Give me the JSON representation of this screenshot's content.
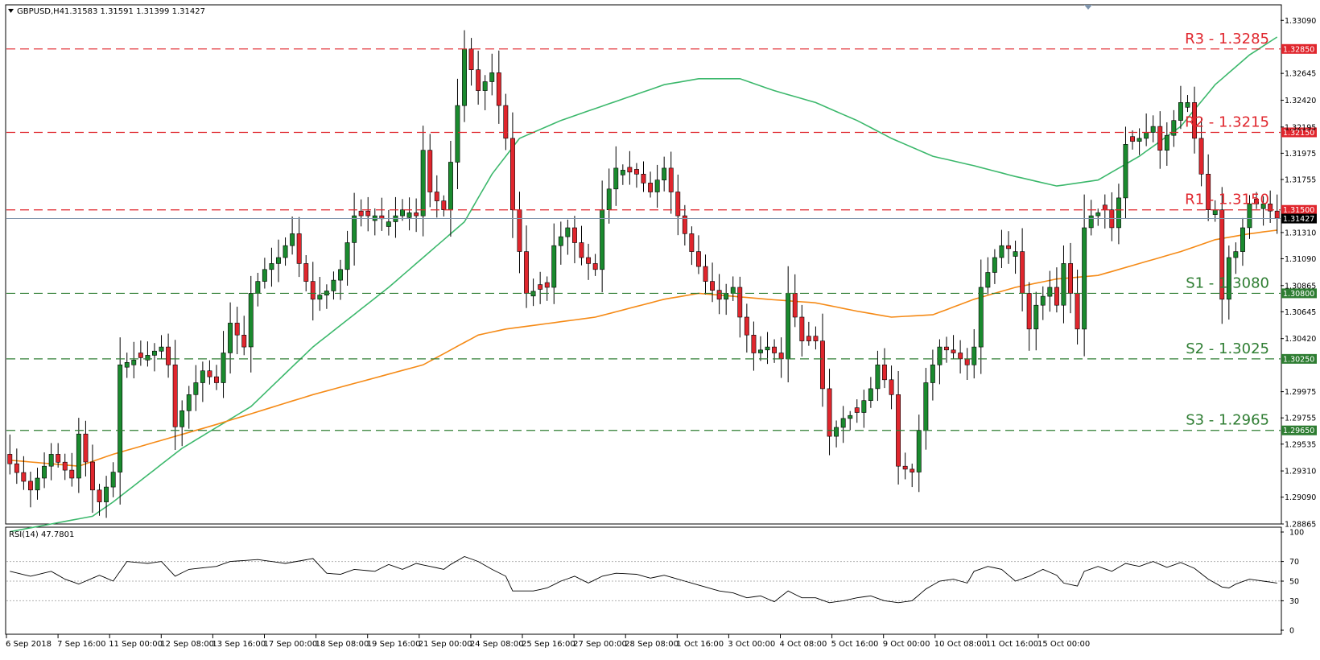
{
  "header": {
    "symbol": "GBPUSD,H4",
    "ohlc": "1.31583 1.31591 1.31399 1.31427",
    "rsi_label": "RSI(14) 47.7801"
  },
  "colors": {
    "bull": "#1a8a2e",
    "bear": "#e0262d",
    "resistance": "#e0262d",
    "support": "#2e7d32",
    "ma_green": "#3cb86c",
    "ma_orange": "#f58a16",
    "price_line": "#7f95ad"
  },
  "chart_data": [
    {
      "type": "candlestick",
      "title": "GBPUSD,H4",
      "ylim": [
        1.28865,
        1.3322
      ],
      "y_ticks": [
        "1.33090",
        "1.32645",
        "1.32420",
        "1.32195",
        "1.31975",
        "1.31755",
        "1.31310",
        "1.31090",
        "1.30865",
        "1.30645",
        "1.30420",
        "1.29975",
        "1.29755",
        "1.29535",
        "1.29310",
        "1.29090",
        "1.28865"
      ],
      "x_ticks": [
        "6 Sep 2018",
        "7 Sep 16:00",
        "11 Sep 00:00",
        "12 Sep 08:00",
        "13 Sep 16:00",
        "17 Sep 00:00",
        "18 Sep 08:00",
        "19 Sep 16:00",
        "21 Sep 00:00",
        "24 Sep 08:00",
        "25 Sep 16:00",
        "27 Sep 00:00",
        "28 Sep 08:00",
        "1 Oct 16:00",
        "3 Oct 00:00",
        "4 Oct 08:00",
        "5 Oct 16:00",
        "9 Oct 00:00",
        "10 Oct 08:00",
        "11 Oct 16:00",
        "15 Oct 00:00"
      ],
      "levels": [
        {
          "label": "R3 - 1.3285",
          "value": 1.3285,
          "tag": "1.32850",
          "kind": "resistance"
        },
        {
          "label": "R2 - 1.3215",
          "value": 1.3215,
          "tag": "1.32150",
          "kind": "resistance"
        },
        {
          "label": "R1 - 1.3150",
          "value": 1.315,
          "tag": "1.31500",
          "kind": "resistance"
        },
        {
          "label": "S1 - 1.3080",
          "value": 1.308,
          "tag": "1.30800",
          "kind": "support"
        },
        {
          "label": "S2 - 1.3025",
          "value": 1.3025,
          "tag": "1.30250",
          "kind": "support"
        },
        {
          "label": "S3 - 1.2965",
          "value": 1.2965,
          "tag": "1.29650",
          "kind": "support"
        }
      ],
      "current_price": {
        "value": 1.31427,
        "tag": "1.31427"
      },
      "close_path": [
        [
          0,
          1.2937
        ],
        [
          3,
          1.2915
        ],
        [
          6,
          1.2945
        ],
        [
          9,
          1.2925
        ],
        [
          10,
          1.2962
        ],
        [
          12,
          1.2915
        ],
        [
          13,
          1.2905
        ],
        [
          15,
          1.293
        ],
        [
          16,
          1.302
        ],
        [
          20,
          1.3028
        ],
        [
          22,
          1.3035
        ],
        [
          23,
          1.302
        ],
        [
          24,
          1.2968
        ],
        [
          26,
          1.2995
        ],
        [
          28,
          1.3015
        ],
        [
          30,
          1.3005
        ],
        [
          32,
          1.3055
        ],
        [
          34,
          1.3035
        ],
        [
          35,
          1.308
        ],
        [
          37,
          1.31
        ],
        [
          39,
          1.311
        ],
        [
          41,
          1.313
        ],
        [
          42,
          1.3105
        ],
        [
          44,
          1.3075
        ],
        [
          46,
          1.3082
        ],
        [
          48,
          1.31
        ],
        [
          50,
          1.3145
        ],
        [
          53,
          1.3145
        ],
        [
          55,
          1.314
        ],
        [
          57,
          1.315
        ],
        [
          59,
          1.3145
        ],
        [
          60,
          1.32
        ],
        [
          61,
          1.3165
        ],
        [
          63,
          1.315
        ],
        [
          64,
          1.319
        ],
        [
          66,
          1.3285
        ],
        [
          68,
          1.325
        ],
        [
          70,
          1.3265
        ],
        [
          72,
          1.321
        ],
        [
          73,
          1.315
        ],
        [
          75,
          1.308
        ],
        [
          78,
          1.3085
        ],
        [
          79,
          1.312
        ],
        [
          81,
          1.3135
        ],
        [
          83,
          1.311
        ],
        [
          85,
          1.31
        ],
        [
          86,
          1.315
        ],
        [
          88,
          1.3185
        ],
        [
          91,
          1.318
        ],
        [
          93,
          1.3165
        ],
        [
          95,
          1.3185
        ],
        [
          97,
          1.3145
        ],
        [
          99,
          1.3115
        ],
        [
          101,
          1.309
        ],
        [
          103,
          1.3075
        ],
        [
          105,
          1.3085
        ],
        [
          106,
          1.306
        ],
        [
          108,
          1.303
        ],
        [
          110,
          1.3035
        ],
        [
          112,
          1.3025
        ],
        [
          113,
          1.308
        ],
        [
          115,
          1.304
        ],
        [
          117,
          1.304
        ],
        [
          119,
          1.296
        ],
        [
          121,
          1.2975
        ],
        [
          123,
          1.298
        ],
        [
          125,
          1.3
        ],
        [
          126,
          1.302
        ],
        [
          128,
          1.2995
        ],
        [
          129,
          1.2935
        ],
        [
          131,
          1.293
        ],
        [
          132,
          1.2965
        ],
        [
          133,
          1.3005
        ],
        [
          135,
          1.3035
        ],
        [
          137,
          1.303
        ],
        [
          139,
          1.302
        ],
        [
          140,
          1.3035
        ],
        [
          141,
          1.3085
        ],
        [
          143,
          1.311
        ],
        [
          144,
          1.312
        ],
        [
          146,
          1.3115
        ],
        [
          147,
          1.308
        ],
        [
          148,
          1.305
        ],
        [
          149,
          1.307
        ],
        [
          151,
          1.3085
        ],
        [
          152,
          1.307
        ],
        [
          153,
          1.3105
        ],
        [
          154,
          1.308
        ],
        [
          155,
          1.305
        ],
        [
          156,
          1.3135
        ],
        [
          157,
          1.3145
        ],
        [
          159,
          1.315
        ],
        [
          160,
          1.3135
        ],
        [
          161,
          1.316
        ],
        [
          162,
          1.3205
        ],
        [
          164,
          1.321
        ],
        [
          166,
          1.322
        ],
        [
          167,
          1.32
        ],
        [
          169,
          1.3225
        ],
        [
          170,
          1.324
        ],
        [
          171,
          1.324
        ],
        [
          172,
          1.321
        ],
        [
          173,
          1.318
        ],
        [
          174,
          1.315
        ],
        [
          175,
          1.315
        ],
        [
          176,
          1.3075
        ],
        [
          177,
          1.311
        ],
        [
          178,
          1.3115
        ],
        [
          179,
          1.3135
        ],
        [
          180,
          1.3155
        ],
        [
          182,
          1.3155
        ],
        [
          184,
          1.3143
        ]
      ],
      "series": [
        {
          "name": "",
          "values": [
            [
              0,
              1.288
            ],
            [
              12,
              1.2893
            ],
            [
              15,
              1.2905
            ],
            [
              25,
              1.295
            ],
            [
              35,
              1.2985
            ],
            [
              44,
              1.3035
            ],
            [
              55,
              1.3085
            ],
            [
              66,
              1.314
            ],
            [
              70,
              1.318
            ],
            [
              74,
              1.321
            ],
            [
              80,
              1.3225
            ],
            [
              90,
              1.3245
            ],
            [
              95,
              1.3255
            ],
            [
              100,
              1.326
            ],
            [
              106,
              1.326
            ],
            [
              111,
              1.325
            ],
            [
              117,
              1.324
            ],
            [
              123,
              1.3225
            ],
            [
              128,
              1.321
            ],
            [
              134,
              1.3195
            ],
            [
              140,
              1.3187
            ],
            [
              146,
              1.3178
            ],
            [
              152,
              1.317
            ],
            [
              158,
              1.3175
            ],
            [
              164,
              1.3195
            ],
            [
              170,
              1.322
            ],
            [
              175,
              1.3255
            ],
            [
              180,
              1.328
            ],
            [
              184,
              1.3295
            ]
          ]
        },
        {
          "name": "",
          "values": [
            [
              0,
              1.294
            ],
            [
              10,
              1.2935
            ],
            [
              15,
              1.2945
            ],
            [
              30,
              1.297
            ],
            [
              44,
              1.2995
            ],
            [
              60,
              1.302
            ],
            [
              68,
              1.3045
            ],
            [
              72,
              1.305
            ],
            [
              85,
              1.306
            ],
            [
              95,
              1.3075
            ],
            [
              100,
              1.308
            ],
            [
              110,
              1.3075
            ],
            [
              117,
              1.3072
            ],
            [
              123,
              1.3065
            ],
            [
              128,
              1.306
            ],
            [
              134,
              1.3062
            ],
            [
              140,
              1.3075
            ],
            [
              146,
              1.3085
            ],
            [
              152,
              1.3092
            ],
            [
              158,
              1.3095
            ],
            [
              164,
              1.3105
            ],
            [
              170,
              1.3115
            ],
            [
              175,
              1.3125
            ],
            [
              180,
              1.313
            ],
            [
              184,
              1.3133
            ]
          ]
        }
      ]
    },
    {
      "type": "line",
      "title": "RSI(14) 47.7801",
      "ylim": [
        0,
        100
      ],
      "y_ticks": [
        "100",
        "70",
        "50",
        "30",
        "0"
      ],
      "levels": [
        70,
        50,
        30
      ],
      "values": [
        [
          0,
          60
        ],
        [
          3,
          55
        ],
        [
          6,
          60
        ],
        [
          8,
          52
        ],
        [
          10,
          47
        ],
        [
          13,
          56
        ],
        [
          15,
          50
        ],
        [
          17,
          70
        ],
        [
          20,
          68
        ],
        [
          22,
          70
        ],
        [
          24,
          55
        ],
        [
          26,
          62
        ],
        [
          30,
          65
        ],
        [
          32,
          70
        ],
        [
          36,
          72
        ],
        [
          40,
          68
        ],
        [
          44,
          73
        ],
        [
          46,
          58
        ],
        [
          48,
          57
        ],
        [
          50,
          62
        ],
        [
          53,
          60
        ],
        [
          55,
          67
        ],
        [
          57,
          62
        ],
        [
          59,
          68
        ],
        [
          61,
          65
        ],
        [
          63,
          62
        ],
        [
          64,
          67
        ],
        [
          66,
          75
        ],
        [
          68,
          70
        ],
        [
          70,
          62
        ],
        [
          72,
          55
        ],
        [
          73,
          40
        ],
        [
          76,
          40
        ],
        [
          78,
          43
        ],
        [
          80,
          50
        ],
        [
          82,
          55
        ],
        [
          84,
          48
        ],
        [
          86,
          55
        ],
        [
          88,
          58
        ],
        [
          91,
          57
        ],
        [
          93,
          53
        ],
        [
          95,
          56
        ],
        [
          97,
          52
        ],
        [
          99,
          48
        ],
        [
          101,
          44
        ],
        [
          103,
          40
        ],
        [
          105,
          38
        ],
        [
          107,
          33
        ],
        [
          109,
          35
        ],
        [
          111,
          29
        ],
        [
          113,
          40
        ],
        [
          115,
          33
        ],
        [
          117,
          33
        ],
        [
          119,
          28
        ],
        [
          121,
          30
        ],
        [
          123,
          33
        ],
        [
          125,
          35
        ],
        [
          127,
          30
        ],
        [
          129,
          28
        ],
        [
          131,
          30
        ],
        [
          133,
          42
        ],
        [
          135,
          50
        ],
        [
          137,
          52
        ],
        [
          139,
          48
        ],
        [
          140,
          60
        ],
        [
          142,
          65
        ],
        [
          144,
          62
        ],
        [
          146,
          50
        ],
        [
          148,
          55
        ],
        [
          150,
          62
        ],
        [
          152,
          56
        ],
        [
          153,
          48
        ],
        [
          155,
          45
        ],
        [
          156,
          60
        ],
        [
          158,
          65
        ],
        [
          160,
          60
        ],
        [
          162,
          68
        ],
        [
          164,
          65
        ],
        [
          166,
          70
        ],
        [
          168,
          64
        ],
        [
          170,
          69
        ],
        [
          172,
          63
        ],
        [
          174,
          52
        ],
        [
          176,
          44
        ],
        [
          177,
          43
        ],
        [
          178,
          47
        ],
        [
          180,
          52
        ],
        [
          182,
          50
        ],
        [
          184,
          48
        ]
      ]
    }
  ]
}
